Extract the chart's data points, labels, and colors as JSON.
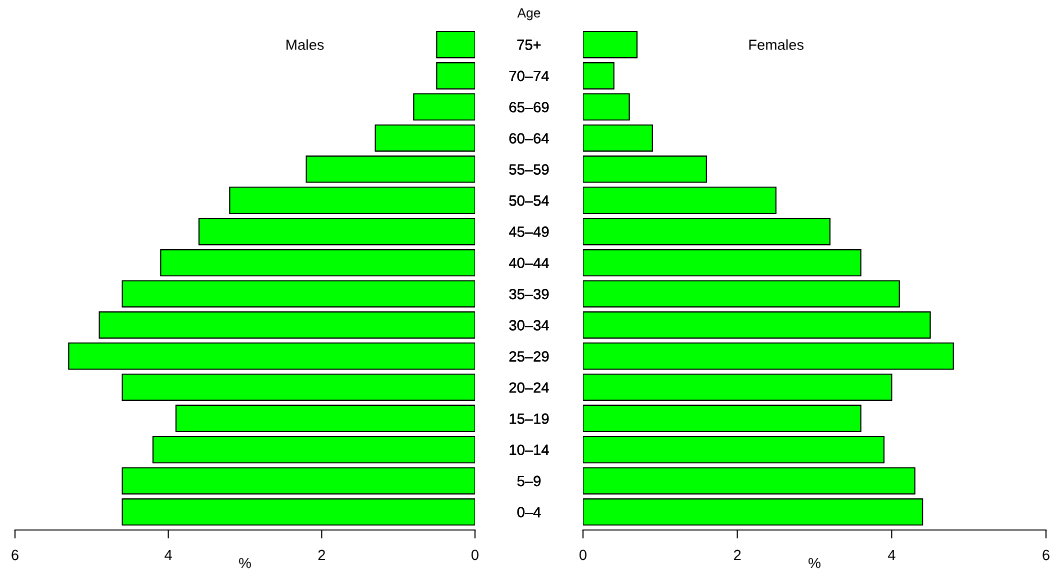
{
  "chart_data": [
    {
      "type": "bar",
      "orientation": "horizontal",
      "title": "Males",
      "xlabel": "%",
      "ylabel": "Age",
      "categories": [
        "75+",
        "70–74",
        "65–69",
        "60–64",
        "55–59",
        "50–54",
        "45–49",
        "40–44",
        "35–39",
        "30–34",
        "25–29",
        "20–24",
        "15–19",
        "10–14",
        "5–9",
        "0–4"
      ],
      "values": [
        0.5,
        0.5,
        0.8,
        1.3,
        2.2,
        3.2,
        3.6,
        4.1,
        4.6,
        4.9,
        5.3,
        4.6,
        3.9,
        4.2,
        4.6,
        4.6
      ],
      "color": "#00ff00",
      "xlim": [
        6,
        0
      ],
      "xticks": [
        6,
        4,
        2,
        0
      ]
    },
    {
      "type": "bar",
      "orientation": "horizontal",
      "title": "Females",
      "xlabel": "%",
      "categories": [
        "75+",
        "70–74",
        "65–69",
        "60–64",
        "55–59",
        "50–54",
        "45–49",
        "40–44",
        "35–39",
        "30–34",
        "25–29",
        "20–24",
        "15–19",
        "10–14",
        "5–9",
        "0–4"
      ],
      "values": [
        0.7,
        0.4,
        0.6,
        0.9,
        1.6,
        2.5,
        3.2,
        3.6,
        4.1,
        4.5,
        4.8,
        4.0,
        3.6,
        3.9,
        4.3,
        4.4
      ],
      "color": "#00ff00",
      "xlim": [
        0,
        6
      ],
      "xticks": [
        0,
        2,
        4,
        6
      ]
    }
  ]
}
